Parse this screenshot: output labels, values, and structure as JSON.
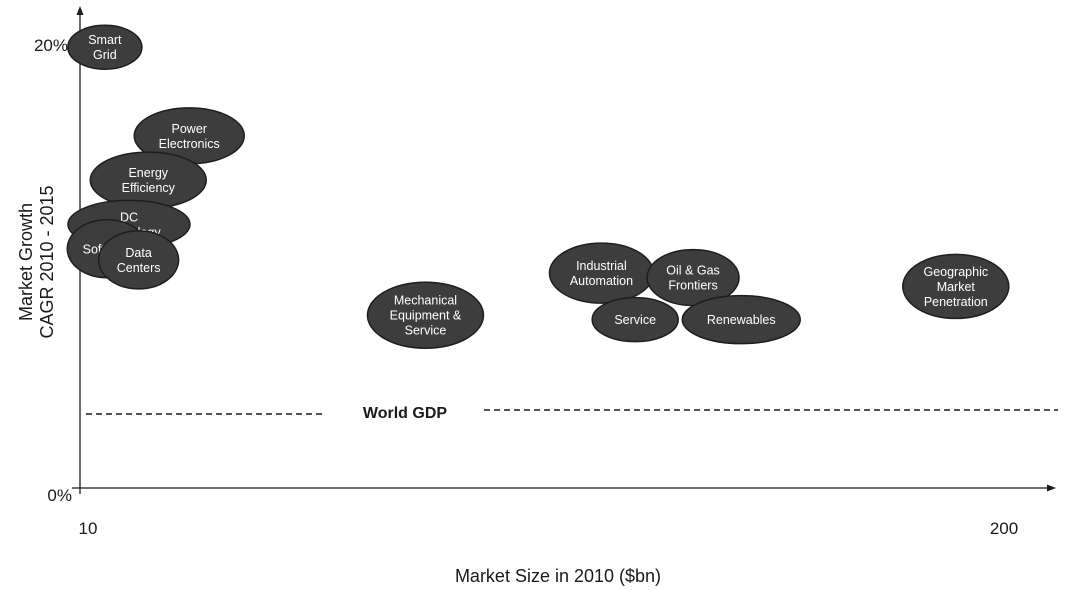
{
  "chart_data": {
    "type": "bubble-scatter",
    "ylabel": [
      "Market Growth",
      "CAGR 2010 - 2015"
    ],
    "xlabel": "Market Size in 2010 ($bn)",
    "x_ticks": [
      "10",
      "200"
    ],
    "y_ticks": [
      "20%",
      "0%"
    ],
    "xlim": [
      10,
      200
    ],
    "ylim": [
      0,
      20
    ],
    "reference_line": {
      "label": "World GDP",
      "y": 3.5,
      "style": "dashed"
    },
    "colors": {
      "bubble_fill": "#3d3d3d",
      "bubble_stroke": "#1e1e1e",
      "bubble_text": "#ffffff",
      "axis": "#1a1a1a"
    },
    "points": [
      {
        "label": [
          "Smart",
          "Grid"
        ],
        "x": 13.5,
        "y": 19.9
      },
      {
        "label": [
          "Power",
          "Electronics"
        ],
        "x": 31,
        "y": 15.9
      },
      {
        "label": [
          "Energy",
          "Efficiency"
        ],
        "x": 22.5,
        "y": 13.9
      },
      {
        "label": [
          "DC",
          "Technology"
        ],
        "x": 18.5,
        "y": 11.9
      },
      {
        "label": [
          "Software"
        ],
        "x": 14,
        "y": 10.8
      },
      {
        "label": [
          "Data",
          "Centers"
        ],
        "x": 20.5,
        "y": 10.3
      },
      {
        "label": [
          "Mechanical",
          "Equipment &",
          "Service"
        ],
        "x": 80,
        "y": 7.8
      },
      {
        "label": [
          "Industrial",
          "Automation"
        ],
        "x": 116.5,
        "y": 9.7
      },
      {
        "label": [
          "Oil & Gas",
          "Frontiers"
        ],
        "x": 135.5,
        "y": 9.5
      },
      {
        "label": [
          "Service"
        ],
        "x": 123.5,
        "y": 7.6
      },
      {
        "label": [
          "Renewables"
        ],
        "x": 145.5,
        "y": 7.6
      },
      {
        "label": [
          "Geographic",
          "Market",
          "Penetration"
        ],
        "x": 190,
        "y": 9.1
      }
    ]
  }
}
